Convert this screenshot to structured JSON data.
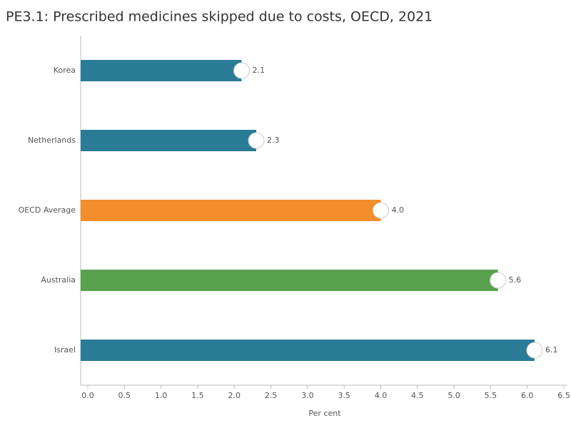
{
  "chart_data": {
    "type": "hbar",
    "title": "PE3.1: Prescribed medicines skipped due to costs, OECD, 2021",
    "categories": [
      "Korea",
      "Netherlands",
      "OECD Average",
      "Australia",
      "Israel"
    ],
    "values": [
      2.1,
      2.3,
      4,
      5.6,
      6.1
    ],
    "value_labels": [
      "2.1",
      "2.3",
      "4.0",
      "5.6",
      "6.1"
    ],
    "colors": [
      "#2a7b96",
      "#2a7b96",
      "#f28e2b",
      "#59a14f",
      "#2a7b96"
    ],
    "xlabel": "Per cent",
    "xlim": [
      0,
      6.5
    ],
    "xticks": [
      {
        "value": 0,
        "label": "0.0"
      },
      0.5,
      {
        "value": 1,
        "label": "1.0"
      },
      1.5,
      {
        "value": 2,
        "label": "2.0"
      },
      2.5,
      {
        "value": 3,
        "label": "3.0"
      },
      3.5,
      {
        "value": 4,
        "label": "4.0"
      },
      4.5,
      {
        "value": 5,
        "label": "5.0"
      },
      5.5,
      {
        "value": 6,
        "label": "6.0"
      },
      6.5
    ]
  }
}
